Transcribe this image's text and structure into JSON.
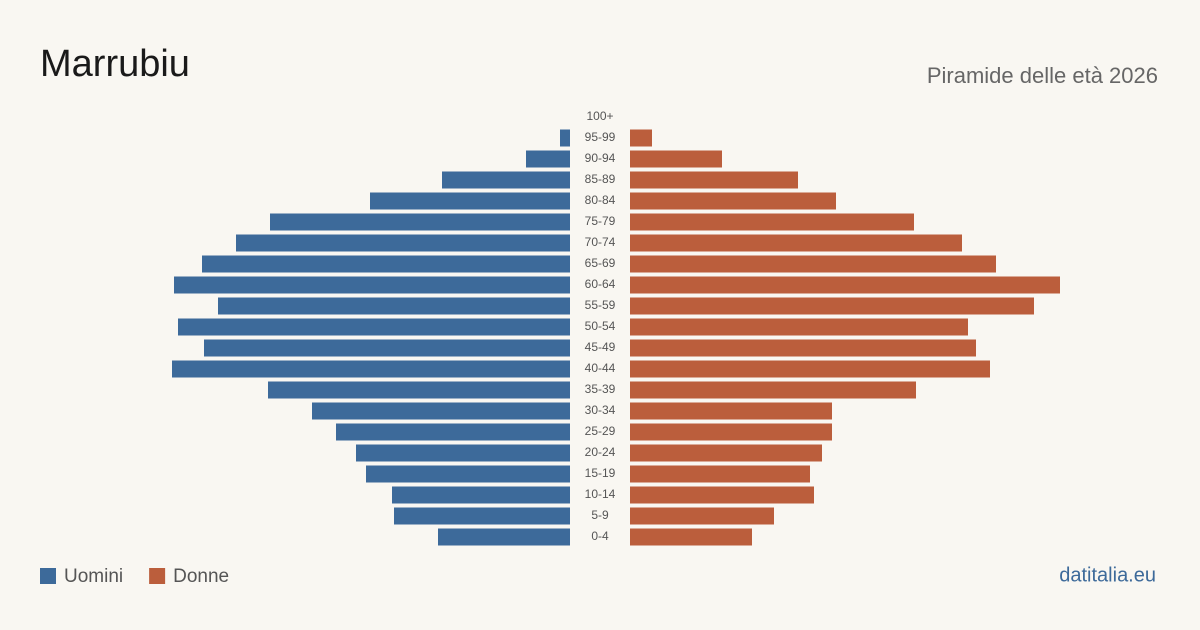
{
  "chart_data": {
    "type": "pyramid",
    "title": "Marrubiu",
    "subtitle": "Piramide delle età 2026",
    "categories": [
      "100+",
      "95-99",
      "90-94",
      "85-89",
      "80-84",
      "75-79",
      "70-74",
      "65-69",
      "60-64",
      "55-59",
      "50-54",
      "45-49",
      "40-44",
      "35-39",
      "30-34",
      "25-29",
      "20-24",
      "15-19",
      "10-14",
      "5-9",
      "0-4"
    ],
    "series": [
      {
        "name": "Uomini",
        "color": "#3d6a9a",
        "values": [
          0,
          5,
          22,
          64,
          100,
          150,
          167,
          184,
          198,
          176,
          196,
          183,
          199,
          151,
          129,
          117,
          107,
          102,
          89,
          88,
          66
        ]
      },
      {
        "name": "Donne",
        "color": "#bb5e3c",
        "values": [
          0,
          11,
          46,
          84,
          103,
          142,
          166,
          183,
          215,
          202,
          169,
          173,
          180,
          143,
          101,
          101,
          96,
          90,
          92,
          72,
          61
        ]
      }
    ],
    "xlim": [
      0,
      215
    ],
    "source": "datitalia.eu"
  }
}
